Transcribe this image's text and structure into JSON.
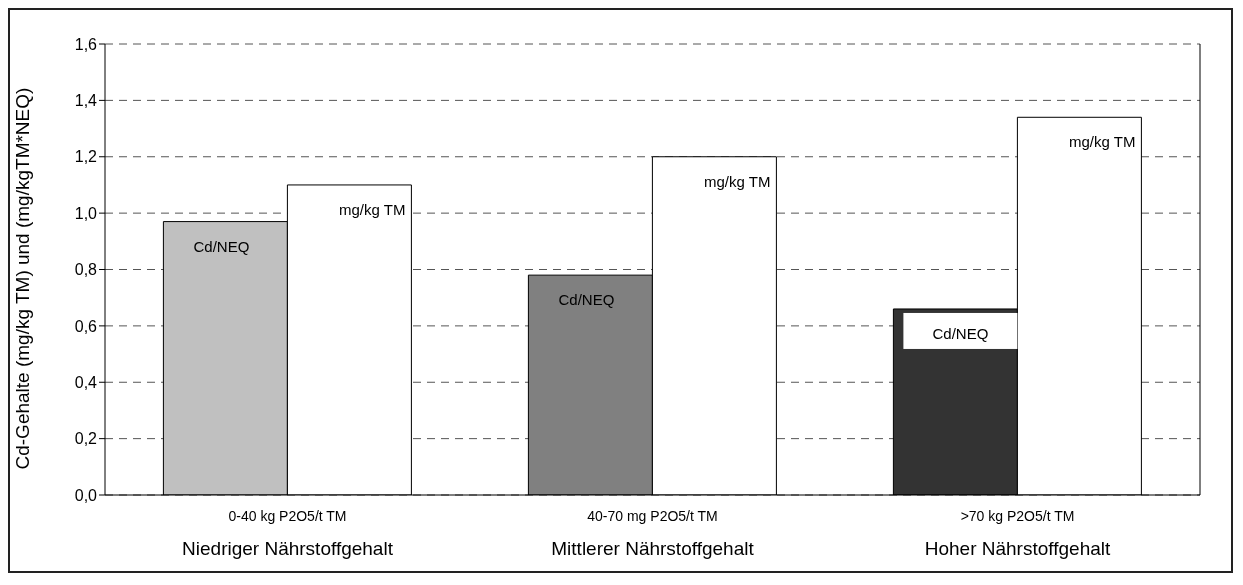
{
  "chart_data": {
    "type": "bar",
    "ylabel": "Cd-Gehalte (mg/kg TM) und (mg/kgTM*NEQ)",
    "categories": [
      "0-40 kg P2O5/t TM\nNiedriger Nährstoffgehalt",
      "40-70 mg P2O5/t TM\nMittlerer Nährstoffgehalt",
      ">70 kg P2O5/t TM\nHoher Nährstoffgehalt"
    ],
    "series": [
      {
        "name": "Cd/NEQ",
        "colors": [
          "#c0c0c0",
          "#808080",
          "#333333"
        ],
        "values": [
          0.97,
          0.78,
          0.66
        ]
      },
      {
        "name": "mg/kg TM",
        "color": "#ffffff",
        "values": [
          1.1,
          1.2,
          1.34
        ]
      }
    ],
    "ylim": [
      0,
      1.6
    ],
    "yticks": [
      {
        "value": 0,
        "label": "0,0"
      },
      {
        "value": 0.2,
        "label": "0,2"
      },
      {
        "value": 0.4,
        "label": "0,4"
      },
      {
        "value": 0.6,
        "label": "0,6"
      },
      {
        "value": 0.8,
        "label": "0,8"
      },
      {
        "value": 1.0,
        "label": "1,0"
      },
      {
        "value": 1.2,
        "label": "1,2"
      },
      {
        "value": 1.4,
        "label": "1,4"
      },
      {
        "value": 1.6,
        "label": "1,6"
      }
    ],
    "grid": "y",
    "legend": false
  }
}
